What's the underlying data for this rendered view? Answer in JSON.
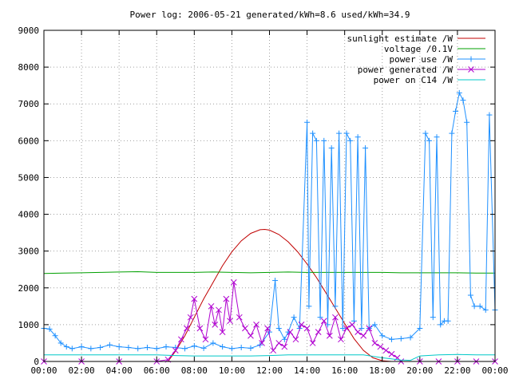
{
  "chart_data": {
    "type": "line",
    "title": "Power log: 2006-05-21 generated/kWh=8.6 used/kWh=34.9",
    "xlabel": "",
    "ylabel": "",
    "x_ticks": [
      "00:00",
      "02:00",
      "04:00",
      "06:00",
      "08:00",
      "10:00",
      "12:00",
      "14:00",
      "16:00",
      "18:00",
      "20:00",
      "22:00",
      "00:00"
    ],
    "y_ticks": [
      "0",
      "1000",
      "2000",
      "3000",
      "4000",
      "5000",
      "6000",
      "7000",
      "8000",
      "9000"
    ],
    "xlim": [
      0,
      24
    ],
    "ylim": [
      0,
      9000
    ],
    "grid": true,
    "legend_position": "top-right",
    "series": [
      {
        "name": "sunlight estimate /W",
        "color": "#c00000",
        "style": "line",
        "x": [
          6.6,
          7.0,
          7.5,
          8.0,
          8.5,
          9.0,
          9.5,
          10.0,
          10.5,
          11.0,
          11.5,
          11.75,
          12.0,
          12.5,
          13.0,
          13.5,
          14.0,
          14.5,
          15.0,
          15.5,
          16.0,
          16.5,
          17.0,
          17.5,
          18.0,
          18.5,
          18.9
        ],
        "values": [
          0,
          280,
          700,
          1200,
          1700,
          2150,
          2600,
          2980,
          3280,
          3480,
          3580,
          3590,
          3570,
          3450,
          3250,
          2980,
          2650,
          2280,
          1870,
          1450,
          1030,
          620,
          300,
          100,
          20,
          0,
          0
        ]
      },
      {
        "name": "voltage /0.1V",
        "color": "#00a000",
        "style": "line",
        "x": [
          0,
          1,
          2,
          3,
          4,
          5,
          6,
          7,
          8,
          9,
          10,
          11,
          12,
          13,
          14,
          15,
          16,
          17,
          18,
          19,
          20,
          21,
          22,
          23,
          24
        ],
        "values": [
          2390,
          2400,
          2410,
          2420,
          2430,
          2440,
          2420,
          2420,
          2420,
          2430,
          2420,
          2410,
          2420,
          2430,
          2420,
          2420,
          2420,
          2420,
          2420,
          2410,
          2410,
          2410,
          2410,
          2400,
          2400
        ]
      },
      {
        "name": "power use /W",
        "color": "#1e90ff",
        "style": "points",
        "marker": "plus",
        "x": [
          0,
          0.3,
          0.6,
          0.9,
          1.2,
          1.5,
          2.0,
          2.5,
          3.0,
          3.5,
          4.0,
          4.5,
          5.0,
          5.5,
          6.0,
          6.5,
          7.0,
          7.5,
          8.0,
          8.5,
          9.0,
          9.5,
          10.0,
          10.5,
          11.0,
          11.5,
          12.0,
          12.3,
          12.5,
          12.8,
          13.0,
          13.3,
          13.6,
          14.0,
          14.1,
          14.3,
          14.5,
          14.7,
          14.9,
          15.1,
          15.3,
          15.5,
          15.7,
          15.9,
          16.1,
          16.3,
          16.5,
          16.7,
          16.9,
          17.1,
          17.3,
          17.6,
          18.0,
          18.5,
          19.0,
          19.5,
          20.0,
          20.3,
          20.5,
          20.7,
          20.9,
          21.1,
          21.3,
          21.5,
          21.7,
          21.9,
          22.1,
          22.3,
          22.5,
          22.7,
          22.9,
          23.2,
          23.5,
          23.7,
          24.0
        ],
        "values": [
          900,
          880,
          700,
          500,
          400,
          350,
          400,
          350,
          380,
          450,
          400,
          380,
          350,
          380,
          350,
          400,
          380,
          350,
          420,
          360,
          500,
          400,
          350,
          380,
          360,
          450,
          800,
          2200,
          900,
          600,
          800,
          1200,
          900,
          6500,
          1500,
          6200,
          6000,
          1200,
          6000,
          1000,
          5800,
          1500,
          6200,
          900,
          6200,
          6000,
          1100,
          6100,
          900,
          5800,
          900,
          1000,
          700,
          600,
          620,
          650,
          900,
          6200,
          6000,
          1200,
          6100,
          1000,
          1100,
          1100,
          6200,
          6800,
          7300,
          7100,
          6500,
          1800,
          1500,
          1500,
          1400,
          6700,
          1400
        ]
      },
      {
        "name": "power generated /W",
        "color": "#b000d0",
        "style": "points",
        "marker": "cross",
        "x": [
          0,
          2,
          4,
          6,
          6.6,
          7.0,
          7.3,
          7.6,
          7.8,
          8.0,
          8.3,
          8.6,
          8.9,
          9.1,
          9.3,
          9.5,
          9.7,
          9.9,
          10.1,
          10.4,
          10.7,
          11.0,
          11.3,
          11.6,
          11.9,
          12.2,
          12.5,
          12.8,
          13.1,
          13.4,
          13.7,
          14.0,
          14.3,
          14.6,
          14.9,
          15.2,
          15.5,
          15.8,
          16.1,
          16.4,
          16.7,
          17.0,
          17.3,
          17.6,
          17.9,
          18.2,
          18.5,
          18.8,
          19.0,
          20,
          21,
          22,
          23,
          24
        ],
        "values": [
          0,
          0,
          0,
          0,
          50,
          300,
          600,
          900,
          1200,
          1700,
          900,
          600,
          1500,
          1000,
          1400,
          800,
          1700,
          1100,
          2150,
          1200,
          900,
          700,
          1000,
          500,
          900,
          300,
          500,
          400,
          800,
          600,
          1000,
          900,
          500,
          800,
          1100,
          700,
          1200,
          600,
          900,
          1000,
          800,
          700,
          900,
          500,
          400,
          300,
          200,
          100,
          0,
          0,
          0,
          0,
          0,
          0
        ]
      },
      {
        "name": "power on C14 /W",
        "color": "#00c8c8",
        "style": "line",
        "x": [
          0,
          1,
          2,
          3,
          4,
          5,
          6,
          7,
          8,
          9,
          10,
          11,
          12,
          13,
          14,
          15,
          16,
          17,
          18,
          19,
          19.5,
          20,
          21,
          22,
          23,
          24
        ],
        "values": [
          180,
          180,
          180,
          180,
          180,
          180,
          180,
          160,
          150,
          150,
          150,
          150,
          160,
          180,
          180,
          180,
          180,
          180,
          100,
          40,
          30,
          150,
          180,
          190,
          180,
          180
        ]
      }
    ]
  }
}
